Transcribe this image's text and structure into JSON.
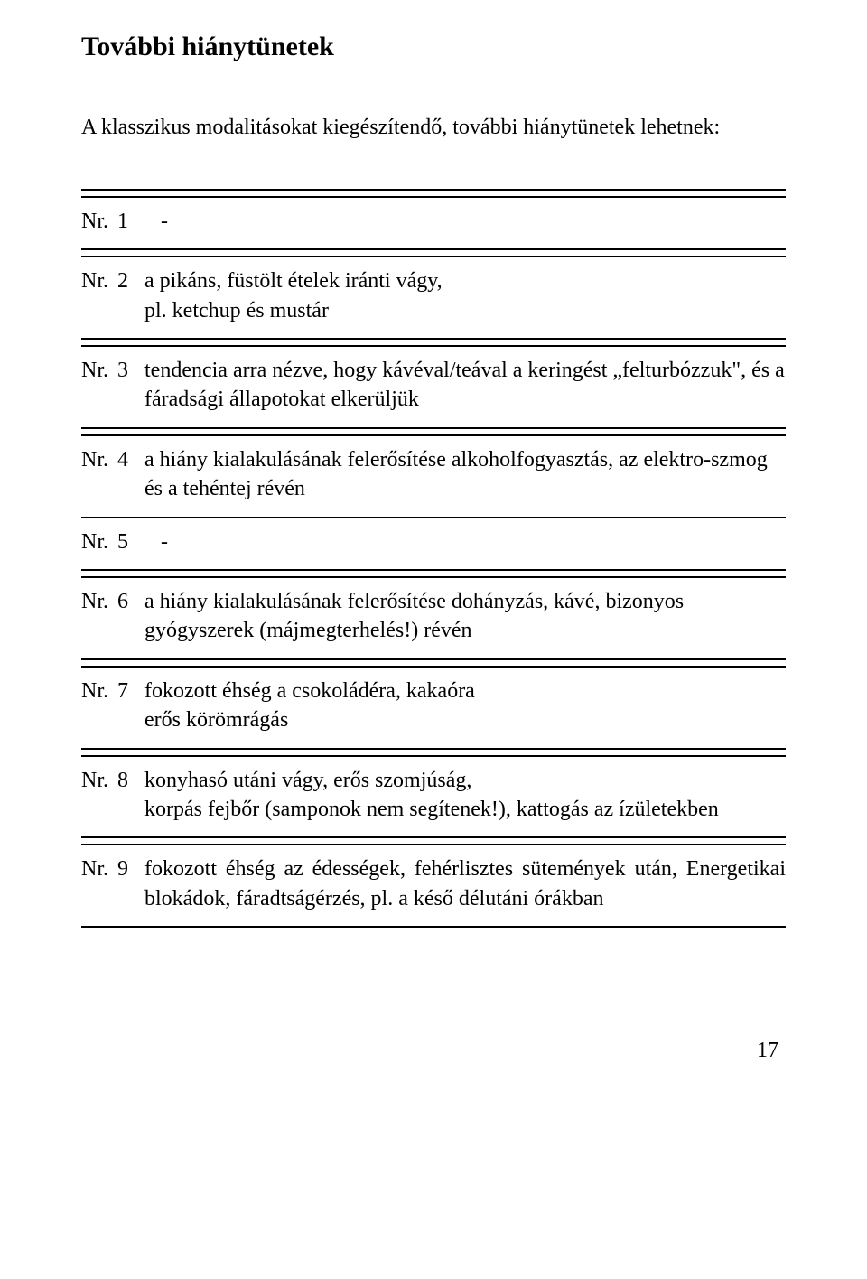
{
  "title": "További hiánytünetek",
  "intro": "A klasszikus modalitásokat kiegészítendő, további hiánytünetek lehetnek:",
  "nr_label": "Nr.",
  "rows": [
    {
      "num": "1",
      "desc": "   -"
    },
    {
      "num": "2",
      "desc": "a pikáns, füstölt ételek iránti vágy,\npl. ketchup és mustár"
    },
    {
      "num": "3",
      "desc": "tendencia arra nézve, hogy kávéval/teával a keringést „felturbózzuk\", és a fáradsági állapotokat elkerüljük"
    },
    {
      "num": "4",
      "desc": "a hiány kialakulásának felerősítése alkoholfogyasztás, az elektro-szmog és a tehéntej révén"
    },
    {
      "num": "5",
      "desc": "   -"
    },
    {
      "num": "6",
      "desc": "a hiány kialakulásának felerősítése dohányzás, kávé, bizonyos gyógyszerek (májmegterhelés!) révén"
    },
    {
      "num": "7",
      "desc": "fokozott éhség a csokoládéra, kakaóra\nerős körömrágás"
    },
    {
      "num": "8",
      "desc": "konyhasó utáni vágy, erős szomjúság,\nkorpás fejbőr (samponok nem segítenek!), kattogás az ízületekben"
    },
    {
      "num": "9",
      "desc": "fokozott éhség az édességek, fehérlisztes sütemények után, Energetikai blokádok, fáradtságérzés, pl. a késő délutáni órákban"
    }
  ],
  "page_number": "17",
  "colors": {
    "text": "#000000",
    "rule": "#000000",
    "background": "#ffffff"
  },
  "typography": {
    "body_fontsize_pt": 18,
    "title_fontsize_pt": 22,
    "font_family": "Palatino / Book Antiqua (serif)"
  }
}
